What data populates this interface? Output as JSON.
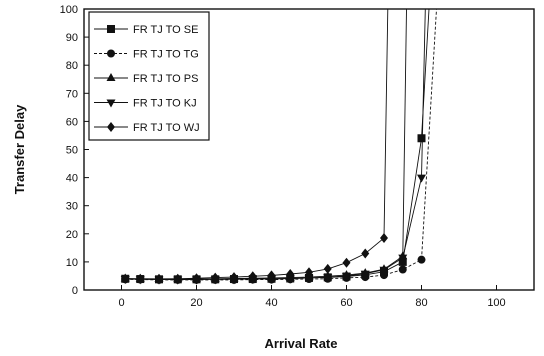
{
  "chart_data": {
    "type": "line",
    "title": "",
    "xlabel": "Arrival Rate",
    "ylabel": "Transfer Delay",
    "xlim": [
      -10,
      110
    ],
    "ylim": [
      0,
      100
    ],
    "xticks": [
      0,
      20,
      40,
      60,
      80,
      100
    ],
    "yticks": [
      0,
      10,
      20,
      30,
      40,
      50,
      60,
      70,
      80,
      90,
      100
    ],
    "grid": false,
    "legend_position": "top-left",
    "series": [
      {
        "name": "FR TJ TO SE",
        "marker": "square",
        "dash": "solid",
        "points": [
          [
            1,
            4
          ],
          [
            5,
            3.9
          ],
          [
            10,
            3.8
          ],
          [
            15,
            3.8
          ],
          [
            20,
            3.8
          ],
          [
            25,
            3.8
          ],
          [
            30,
            3.9
          ],
          [
            35,
            3.9
          ],
          [
            40,
            4
          ],
          [
            45,
            4.1
          ],
          [
            50,
            4.3
          ],
          [
            55,
            4.5
          ],
          [
            60,
            4.8
          ],
          [
            65,
            5.4
          ],
          [
            70,
            6.5
          ],
          [
            75,
            10
          ],
          [
            80,
            54
          ],
          [
            82,
            100
          ]
        ]
      },
      {
        "name": "FR TJ TO TG",
        "marker": "circle",
        "dash": "dashed",
        "points": [
          [
            1,
            3.8
          ],
          [
            5,
            3.7
          ],
          [
            10,
            3.6
          ],
          [
            15,
            3.6
          ],
          [
            20,
            3.6
          ],
          [
            25,
            3.6
          ],
          [
            30,
            3.6
          ],
          [
            35,
            3.7
          ],
          [
            40,
            3.7
          ],
          [
            45,
            3.8
          ],
          [
            50,
            3.9
          ],
          [
            55,
            4
          ],
          [
            60,
            4.3
          ],
          [
            65,
            4.6
          ],
          [
            70,
            5.3
          ],
          [
            75,
            7.3
          ],
          [
            80,
            10.8
          ],
          [
            84,
            100
          ]
        ]
      },
      {
        "name": "FR TJ TO PS",
        "marker": "triangle-up",
        "dash": "solid",
        "points": [
          [
            1,
            4.1
          ],
          [
            5,
            4
          ],
          [
            10,
            3.9
          ],
          [
            15,
            4
          ],
          [
            20,
            4
          ],
          [
            25,
            4
          ],
          [
            30,
            4.1
          ],
          [
            35,
            4.2
          ],
          [
            40,
            4.3
          ],
          [
            45,
            4.4
          ],
          [
            50,
            4.6
          ],
          [
            55,
            4.9
          ],
          [
            60,
            5.3
          ],
          [
            65,
            6
          ],
          [
            70,
            7.4
          ],
          [
            75,
            12
          ],
          [
            76,
            100
          ]
        ]
      },
      {
        "name": "FR TJ TO KJ",
        "marker": "triangle-down",
        "dash": "solid",
        "points": [
          [
            1,
            3.9
          ],
          [
            5,
            3.8
          ],
          [
            10,
            3.7
          ],
          [
            15,
            3.7
          ],
          [
            20,
            3.7
          ],
          [
            25,
            3.8
          ],
          [
            30,
            3.8
          ],
          [
            35,
            3.9
          ],
          [
            40,
            4
          ],
          [
            45,
            4.1
          ],
          [
            50,
            4.3
          ],
          [
            55,
            4.6
          ],
          [
            60,
            5
          ],
          [
            65,
            5.8
          ],
          [
            70,
            7.2
          ],
          [
            75,
            11.5
          ],
          [
            80,
            40
          ],
          [
            81,
            100
          ]
        ]
      },
      {
        "name": "FR TJ TO WJ",
        "marker": "diamond",
        "dash": "solid",
        "points": [
          [
            1,
            4
          ],
          [
            5,
            4
          ],
          [
            10,
            4
          ],
          [
            15,
            4
          ],
          [
            20,
            4.2
          ],
          [
            25,
            4.4
          ],
          [
            30,
            4.6
          ],
          [
            35,
            4.9
          ],
          [
            40,
            5.2
          ],
          [
            45,
            5.7
          ],
          [
            50,
            6.3
          ],
          [
            55,
            7.5
          ],
          [
            60,
            9.7
          ],
          [
            65,
            13
          ],
          [
            70,
            18.5
          ],
          [
            71,
            100
          ]
        ]
      }
    ]
  }
}
